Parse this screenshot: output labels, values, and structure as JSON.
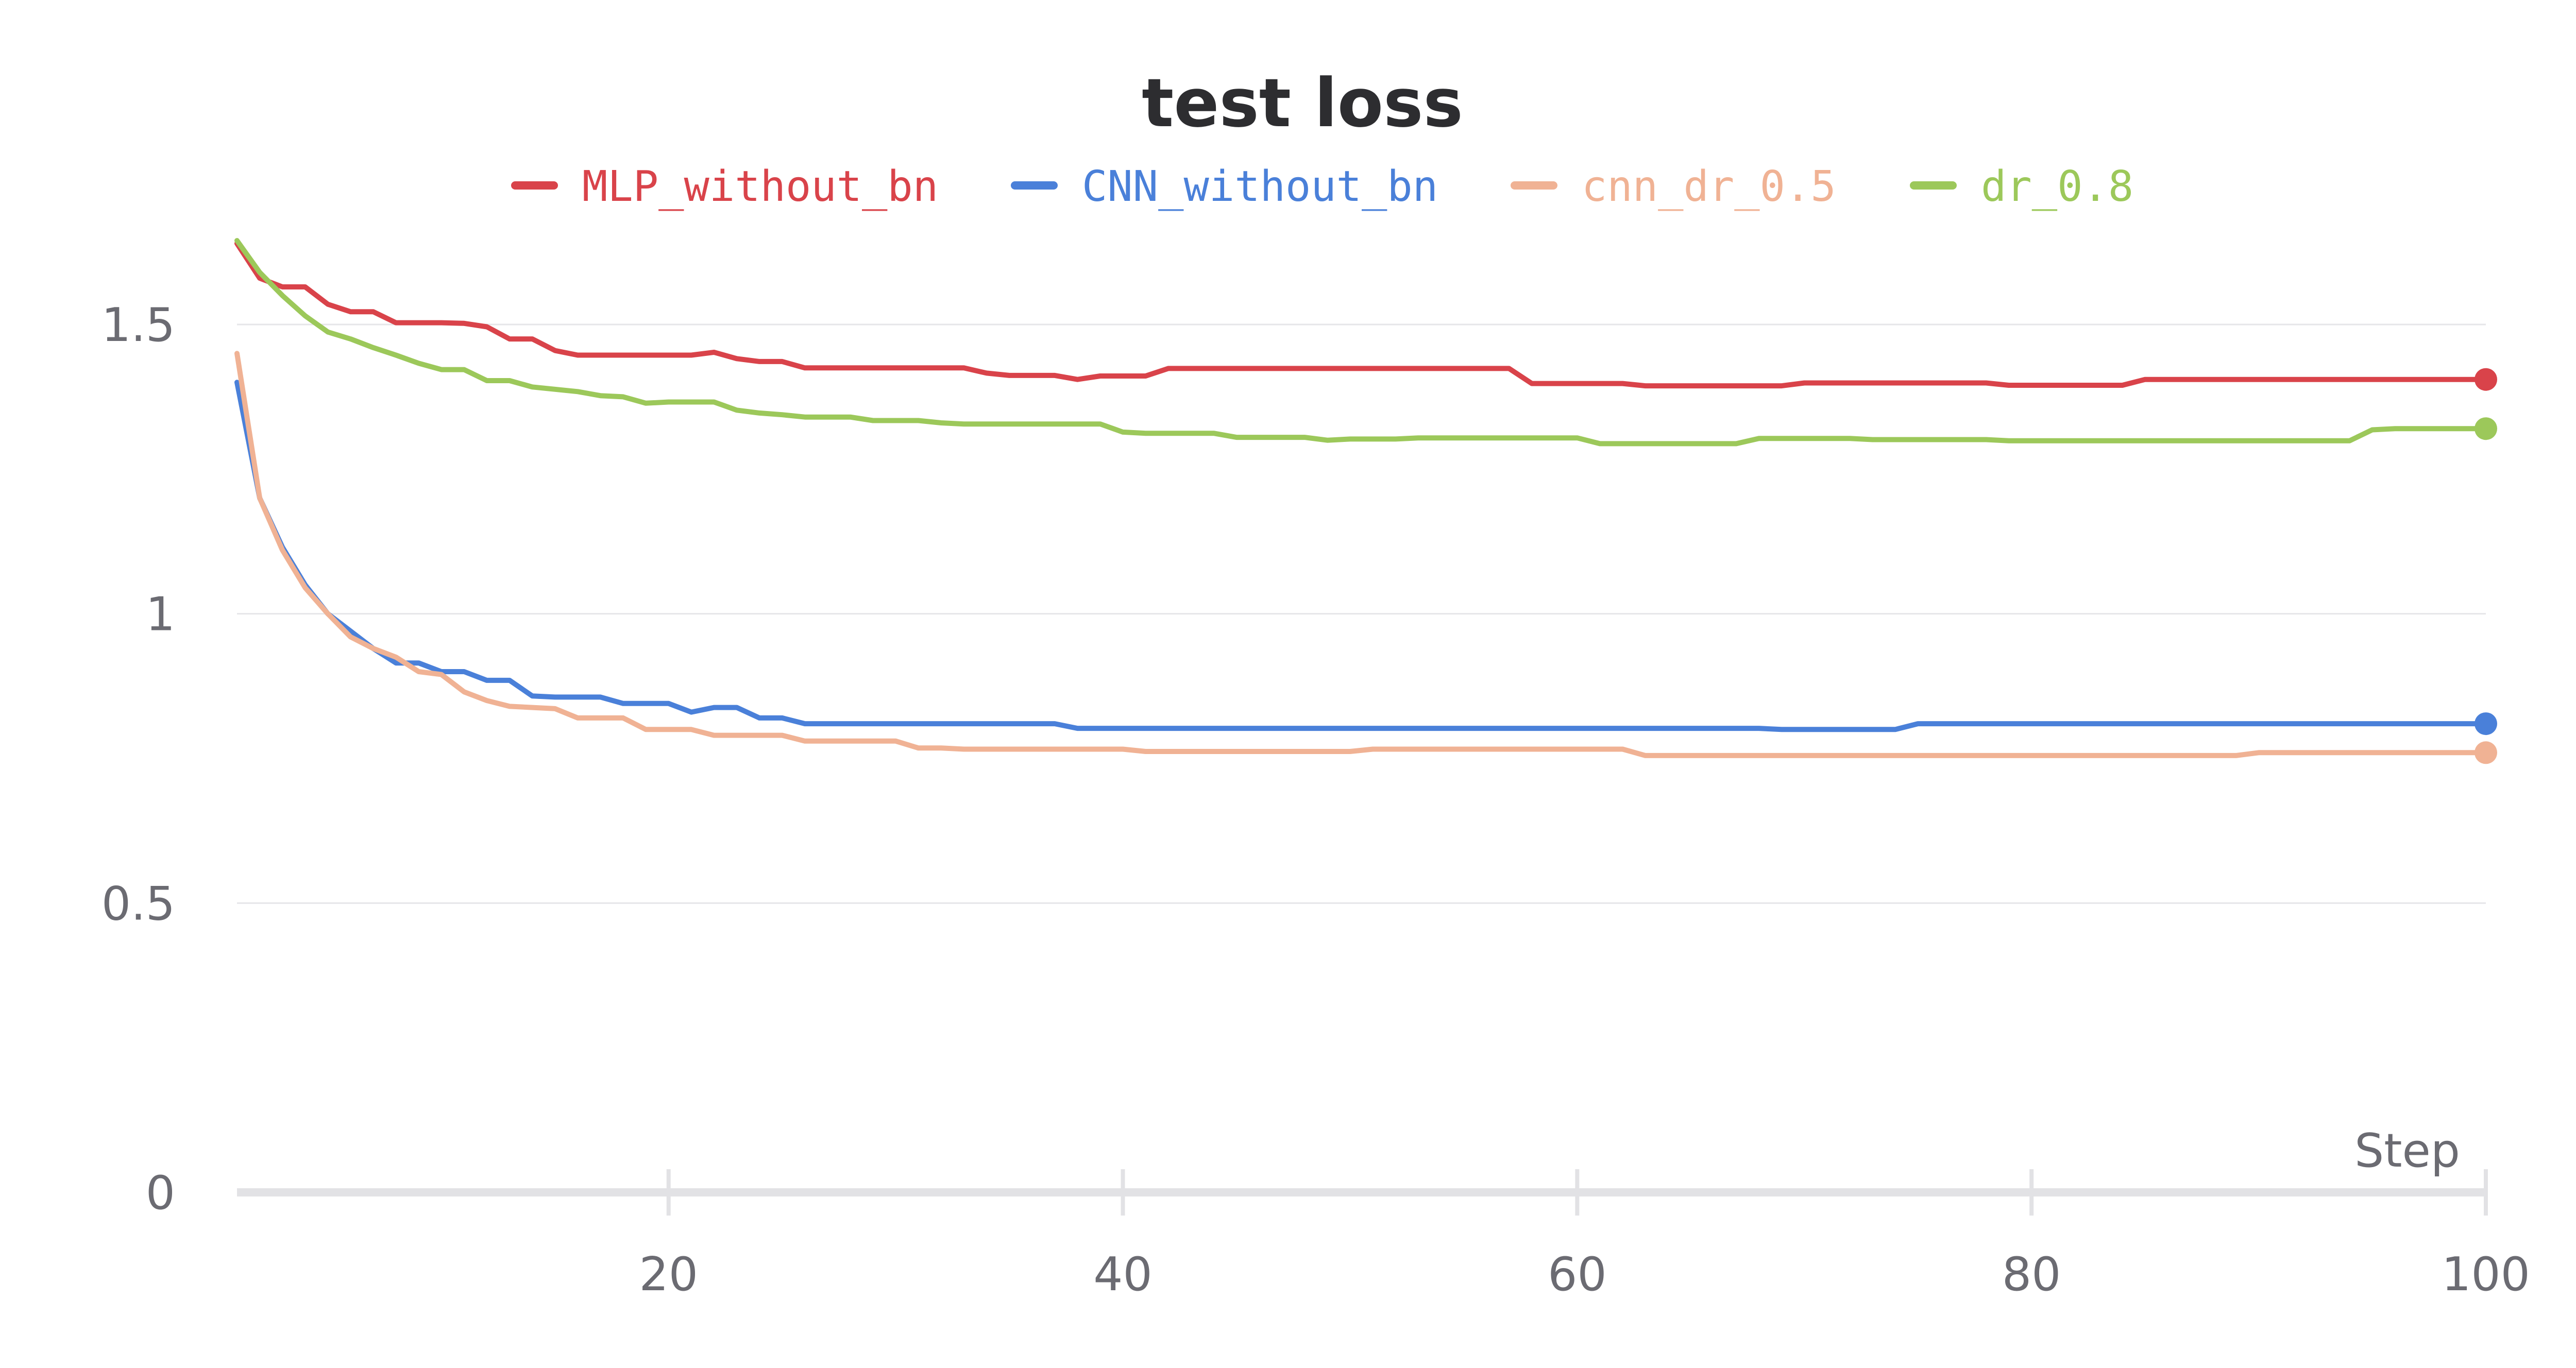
{
  "chart_data": {
    "type": "line",
    "title": "test loss",
    "xlabel": "Step",
    "ylabel": "",
    "xlim": [
      1,
      100
    ],
    "ylim": [
      0,
      1.7
    ],
    "xticks": [
      20,
      40,
      60,
      80,
      100
    ],
    "xtick_labels": [
      "20",
      "40",
      "60",
      "80",
      "100"
    ],
    "yticks": [
      0,
      0.5,
      1,
      1.5
    ],
    "ytick_labels": [
      "0",
      "0.5",
      "1",
      "1.5"
    ],
    "grid": true,
    "legend_position": "top",
    "x": [
      1,
      2,
      3,
      4,
      5,
      6,
      7,
      8,
      9,
      10,
      11,
      12,
      13,
      14,
      15,
      16,
      17,
      18,
      19,
      20,
      21,
      22,
      23,
      24,
      25,
      26,
      27,
      28,
      29,
      30,
      31,
      32,
      33,
      34,
      35,
      36,
      37,
      38,
      39,
      40,
      41,
      42,
      43,
      44,
      45,
      46,
      47,
      48,
      49,
      50,
      51,
      52,
      53,
      54,
      55,
      56,
      57,
      58,
      59,
      60,
      61,
      62,
      63,
      64,
      65,
      66,
      67,
      68,
      69,
      70,
      71,
      72,
      73,
      74,
      75,
      76,
      77,
      78,
      79,
      80,
      81,
      82,
      83,
      84,
      85,
      86,
      87,
      88,
      89,
      90,
      91,
      92,
      93,
      94,
      95,
      96,
      97,
      98,
      99,
      100
    ],
    "series": [
      {
        "name": "MLP_without_bn",
        "color": "#d9434a",
        "values": [
          1.64,
          1.58,
          1.565,
          1.565,
          1.535,
          1.522,
          1.522,
          1.503,
          1.503,
          1.503,
          1.502,
          1.496,
          1.475,
          1.475,
          1.455,
          1.447,
          1.447,
          1.447,
          1.447,
          1.447,
          1.447,
          1.452,
          1.441,
          1.436,
          1.436,
          1.425,
          1.425,
          1.425,
          1.425,
          1.425,
          1.425,
          1.425,
          1.425,
          1.416,
          1.412,
          1.412,
          1.412,
          1.405,
          1.411,
          1.411,
          1.411,
          1.424,
          1.424,
          1.424,
          1.424,
          1.424,
          1.424,
          1.424,
          1.424,
          1.424,
          1.424,
          1.424,
          1.424,
          1.424,
          1.424,
          1.424,
          1.424,
          1.398,
          1.398,
          1.398,
          1.398,
          1.398,
          1.394,
          1.394,
          1.394,
          1.394,
          1.394,
          1.394,
          1.394,
          1.399,
          1.399,
          1.399,
          1.399,
          1.399,
          1.399,
          1.399,
          1.399,
          1.399,
          1.395,
          1.395,
          1.395,
          1.395,
          1.395,
          1.395,
          1.405,
          1.405,
          1.405,
          1.405,
          1.405,
          1.405,
          1.405,
          1.405,
          1.405,
          1.405,
          1.405,
          1.405,
          1.405,
          1.405,
          1.405,
          1.405
        ]
      },
      {
        "name": "CNN_without_bn",
        "color": "#4a80d9",
        "values": [
          1.4,
          1.2,
          1.115,
          1.05,
          1.0,
          0.97,
          0.94,
          0.915,
          0.915,
          0.9,
          0.9,
          0.885,
          0.885,
          0.858,
          0.856,
          0.856,
          0.856,
          0.845,
          0.845,
          0.845,
          0.83,
          0.838,
          0.838,
          0.82,
          0.82,
          0.81,
          0.81,
          0.81,
          0.81,
          0.81,
          0.81,
          0.81,
          0.81,
          0.81,
          0.81,
          0.81,
          0.81,
          0.802,
          0.802,
          0.802,
          0.802,
          0.802,
          0.802,
          0.802,
          0.802,
          0.802,
          0.802,
          0.802,
          0.802,
          0.802,
          0.802,
          0.802,
          0.802,
          0.802,
          0.802,
          0.802,
          0.802,
          0.802,
          0.802,
          0.802,
          0.802,
          0.802,
          0.802,
          0.802,
          0.802,
          0.802,
          0.802,
          0.802,
          0.8,
          0.8,
          0.8,
          0.8,
          0.8,
          0.8,
          0.81,
          0.81,
          0.81,
          0.81,
          0.81,
          0.81,
          0.81,
          0.81,
          0.81,
          0.81,
          0.81,
          0.81,
          0.81,
          0.81,
          0.81,
          0.81,
          0.81,
          0.81,
          0.81,
          0.81,
          0.81,
          0.81,
          0.81,
          0.81,
          0.81,
          0.81
        ]
      },
      {
        "name": "cnn_dr_0.5",
        "color": "#f0b294",
        "values": [
          1.45,
          1.2,
          1.11,
          1.045,
          1.0,
          0.96,
          0.94,
          0.925,
          0.9,
          0.895,
          0.865,
          0.85,
          0.84,
          0.838,
          0.836,
          0.82,
          0.82,
          0.82,
          0.8,
          0.8,
          0.8,
          0.79,
          0.79,
          0.79,
          0.79,
          0.78,
          0.78,
          0.78,
          0.78,
          0.78,
          0.768,
          0.768,
          0.766,
          0.766,
          0.766,
          0.766,
          0.766,
          0.766,
          0.766,
          0.766,
          0.762,
          0.762,
          0.762,
          0.762,
          0.762,
          0.762,
          0.762,
          0.762,
          0.762,
          0.762,
          0.766,
          0.766,
          0.766,
          0.766,
          0.766,
          0.766,
          0.766,
          0.766,
          0.766,
          0.766,
          0.766,
          0.766,
          0.755,
          0.755,
          0.755,
          0.755,
          0.755,
          0.755,
          0.755,
          0.755,
          0.755,
          0.755,
          0.755,
          0.755,
          0.755,
          0.755,
          0.755,
          0.755,
          0.755,
          0.755,
          0.755,
          0.755,
          0.755,
          0.755,
          0.755,
          0.755,
          0.755,
          0.755,
          0.755,
          0.76,
          0.76,
          0.76,
          0.76,
          0.76,
          0.76,
          0.76,
          0.76,
          0.76,
          0.76,
          0.76
        ]
      },
      {
        "name": "dr_0.8",
        "color": "#9cc85a",
        "values": [
          1.645,
          1.59,
          1.55,
          1.515,
          1.487,
          1.475,
          1.46,
          1.447,
          1.433,
          1.422,
          1.422,
          1.403,
          1.403,
          1.392,
          1.388,
          1.384,
          1.377,
          1.375,
          1.364,
          1.366,
          1.366,
          1.366,
          1.352,
          1.347,
          1.344,
          1.34,
          1.34,
          1.34,
          1.334,
          1.334,
          1.334,
          1.33,
          1.328,
          1.328,
          1.328,
          1.328,
          1.328,
          1.328,
          1.328,
          1.314,
          1.312,
          1.312,
          1.312,
          1.312,
          1.305,
          1.305,
          1.305,
          1.305,
          1.3,
          1.302,
          1.302,
          1.302,
          1.304,
          1.304,
          1.304,
          1.304,
          1.304,
          1.304,
          1.304,
          1.304,
          1.294,
          1.294,
          1.294,
          1.294,
          1.294,
          1.294,
          1.294,
          1.303,
          1.303,
          1.303,
          1.303,
          1.303,
          1.301,
          1.301,
          1.301,
          1.301,
          1.301,
          1.301,
          1.299,
          1.299,
          1.299,
          1.299,
          1.299,
          1.299,
          1.299,
          1.299,
          1.299,
          1.299,
          1.299,
          1.299,
          1.299,
          1.299,
          1.299,
          1.299,
          1.318,
          1.32,
          1.32,
          1.32,
          1.32,
          1.32
        ]
      }
    ]
  }
}
